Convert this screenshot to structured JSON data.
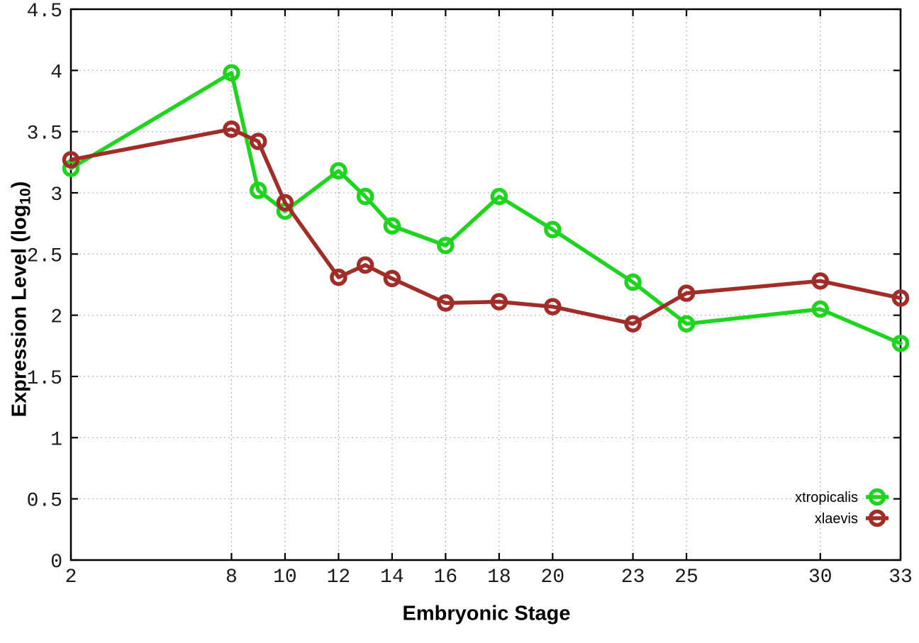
{
  "chart_data": {
    "type": "line",
    "title": "",
    "xlabel": "Embryonic Stage",
    "ylabel": {
      "text": "Expression Level (log10)",
      "prefix": "Expression Level (log",
      "subscript": "10",
      "suffix": ")"
    },
    "xlim": [
      2,
      33
    ],
    "ylim": [
      0,
      4.5
    ],
    "xticks": [
      2,
      8,
      10,
      12,
      14,
      16,
      18,
      20,
      23,
      25,
      30,
      33
    ],
    "yticks": [
      0,
      0.5,
      1,
      1.5,
      2,
      2.5,
      3,
      3.5,
      4,
      4.5
    ],
    "grid": true,
    "legend_position": "inside-bottom-right",
    "marker_style": "open-circle",
    "x": [
      2,
      8,
      9,
      10,
      12,
      13,
      14,
      16,
      18,
      20,
      23,
      25,
      30,
      33
    ],
    "series": [
      {
        "name": "xtropicalis",
        "color": "#1dd51d",
        "values": [
          3.2,
          3.98,
          3.02,
          2.85,
          3.18,
          2.97,
          2.73,
          2.57,
          2.97,
          2.7,
          2.27,
          1.93,
          2.05,
          1.77
        ]
      },
      {
        "name": "xlaevis",
        "color": "#a22c28",
        "values": [
          3.27,
          3.52,
          3.42,
          2.92,
          2.31,
          2.41,
          2.3,
          2.1,
          2.11,
          2.07,
          1.93,
          2.18,
          2.28,
          2.14
        ]
      }
    ],
    "colors": {
      "background": "#ffffff",
      "grid": "#b3b3b3",
      "axis": "#000000",
      "tick_text": "#1a1a1a"
    }
  }
}
